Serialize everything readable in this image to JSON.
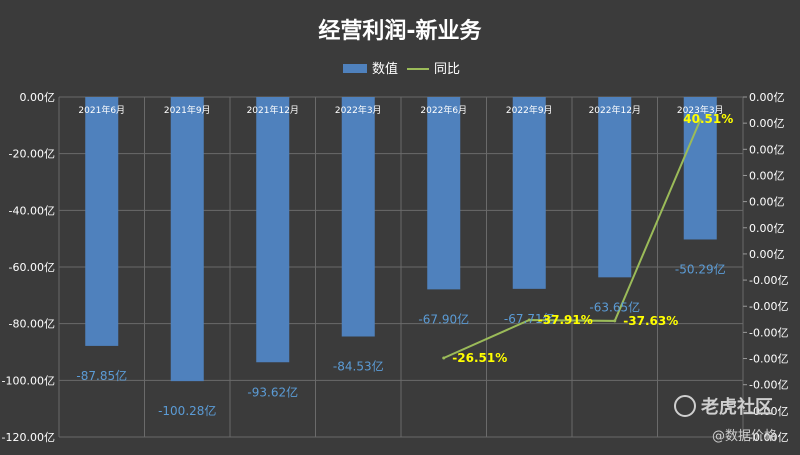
{
  "chart_data": {
    "type": "bar",
    "title": "经营利润-新业务",
    "categories": [
      "2021年6月",
      "2021年9月",
      "2021年12月",
      "2022年3月",
      "2022年6月",
      "2022年9月",
      "2022年12月",
      "2023年3月"
    ],
    "series": [
      {
        "name": "数值",
        "kind": "bar",
        "color": "#4f81bd",
        "values": [
          -87.85,
          -100.28,
          -93.62,
          -84.53,
          -67.9,
          -67.71,
          -63.65,
          -50.29
        ],
        "labels": [
          "-87.85亿",
          "-100.28亿",
          "-93.62亿",
          "-84.53亿",
          "-67.90亿",
          "-67.71亿",
          "-63.65亿",
          "-50.29亿"
        ]
      },
      {
        "name": "同比",
        "kind": "line",
        "color": "#9bbb59",
        "axis": "right",
        "values": [
          null,
          null,
          null,
          null,
          -26.51,
          -37.91,
          -37.63,
          40.51
        ],
        "labels": [
          null,
          null,
          null,
          null,
          "-26.51%",
          "-37.91%",
          "-37.63%",
          "40.51%"
        ]
      }
    ],
    "ylim": [
      -120,
      0
    ],
    "y_ticks": [
      "0.00亿",
      "-20.00亿",
      "-40.00亿",
      "-60.00亿",
      "-80.00亿",
      "-100.00亿",
      "-120.00亿"
    ],
    "y2_ticks": [
      "0.00亿",
      "0.00亿",
      "0.00亿",
      "0.00亿",
      "0.00亿",
      "0.00亿",
      "0.00亿",
      "-0.00亿",
      "-0.00亿",
      "-0.00亿",
      "-0.00亿",
      "-0.00亿",
      "-0.00亿",
      "-0.00亿"
    ],
    "legend_position": "top-center",
    "grid": true
  },
  "watermark": {
    "logo_text": "老虎社区",
    "handle": "@数据价格"
  }
}
